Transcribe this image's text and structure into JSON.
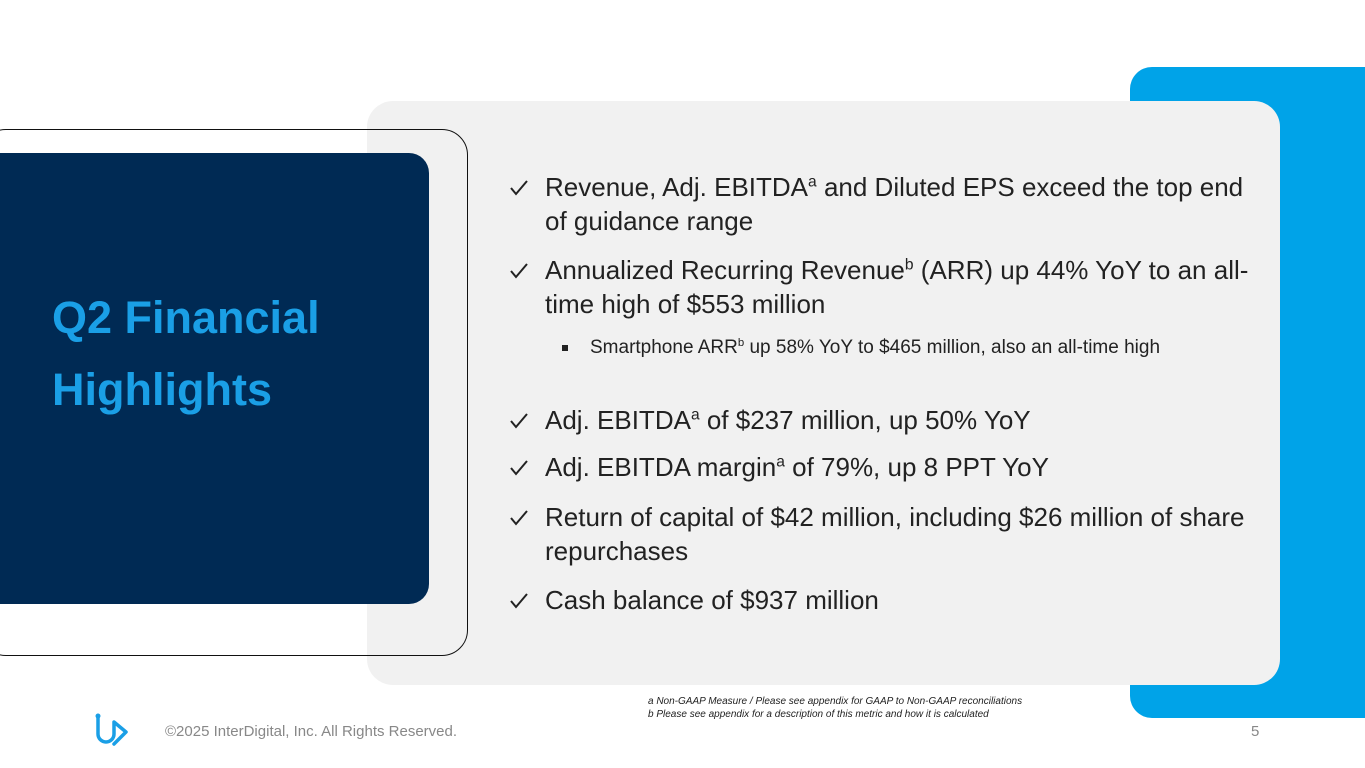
{
  "slide": {
    "title": [
      "Q2 Financial",
      "Highlights"
    ],
    "bullets": [
      {
        "level": 1,
        "segments": [
          "Revenue, Adj. EBITDA",
          "a",
          " and Diluted EPS exceed the top end of guidance range"
        ]
      },
      {
        "level": 1,
        "segments": [
          "Annualized Recurring Revenue",
          "b",
          " (ARR) up 44% YoY to an all-time high of $553 million"
        ]
      },
      {
        "level": 2,
        "segments": [
          "Smartphone ARR",
          "b",
          " up 58% YoY to $465 million, also an all-time high"
        ]
      },
      {
        "level": 1,
        "segments": [
          "Adj. EBITDA",
          "a",
          " of $237 million, up 50% YoY"
        ]
      },
      {
        "level": 1,
        "segments": [
          "Adj. EBITDA margin",
          "a",
          " of 79%, up 8 PPT YoY"
        ]
      },
      {
        "level": 1,
        "segments": [
          "Return of capital of $42 million, including $26 million of share repurchases"
        ]
      },
      {
        "level": 1,
        "segments": [
          "Cash balance of $937 million"
        ]
      }
    ],
    "footnotes": [
      "a Non-GAAP Measure / Please see appendix for GAAP to Non-GAAP reconciliations",
      "b Please see appendix for a description of this metric and how it is calculated"
    ],
    "copyright": "©2025 InterDigital, Inc. All Rights Reserved.",
    "page_number": "5"
  }
}
